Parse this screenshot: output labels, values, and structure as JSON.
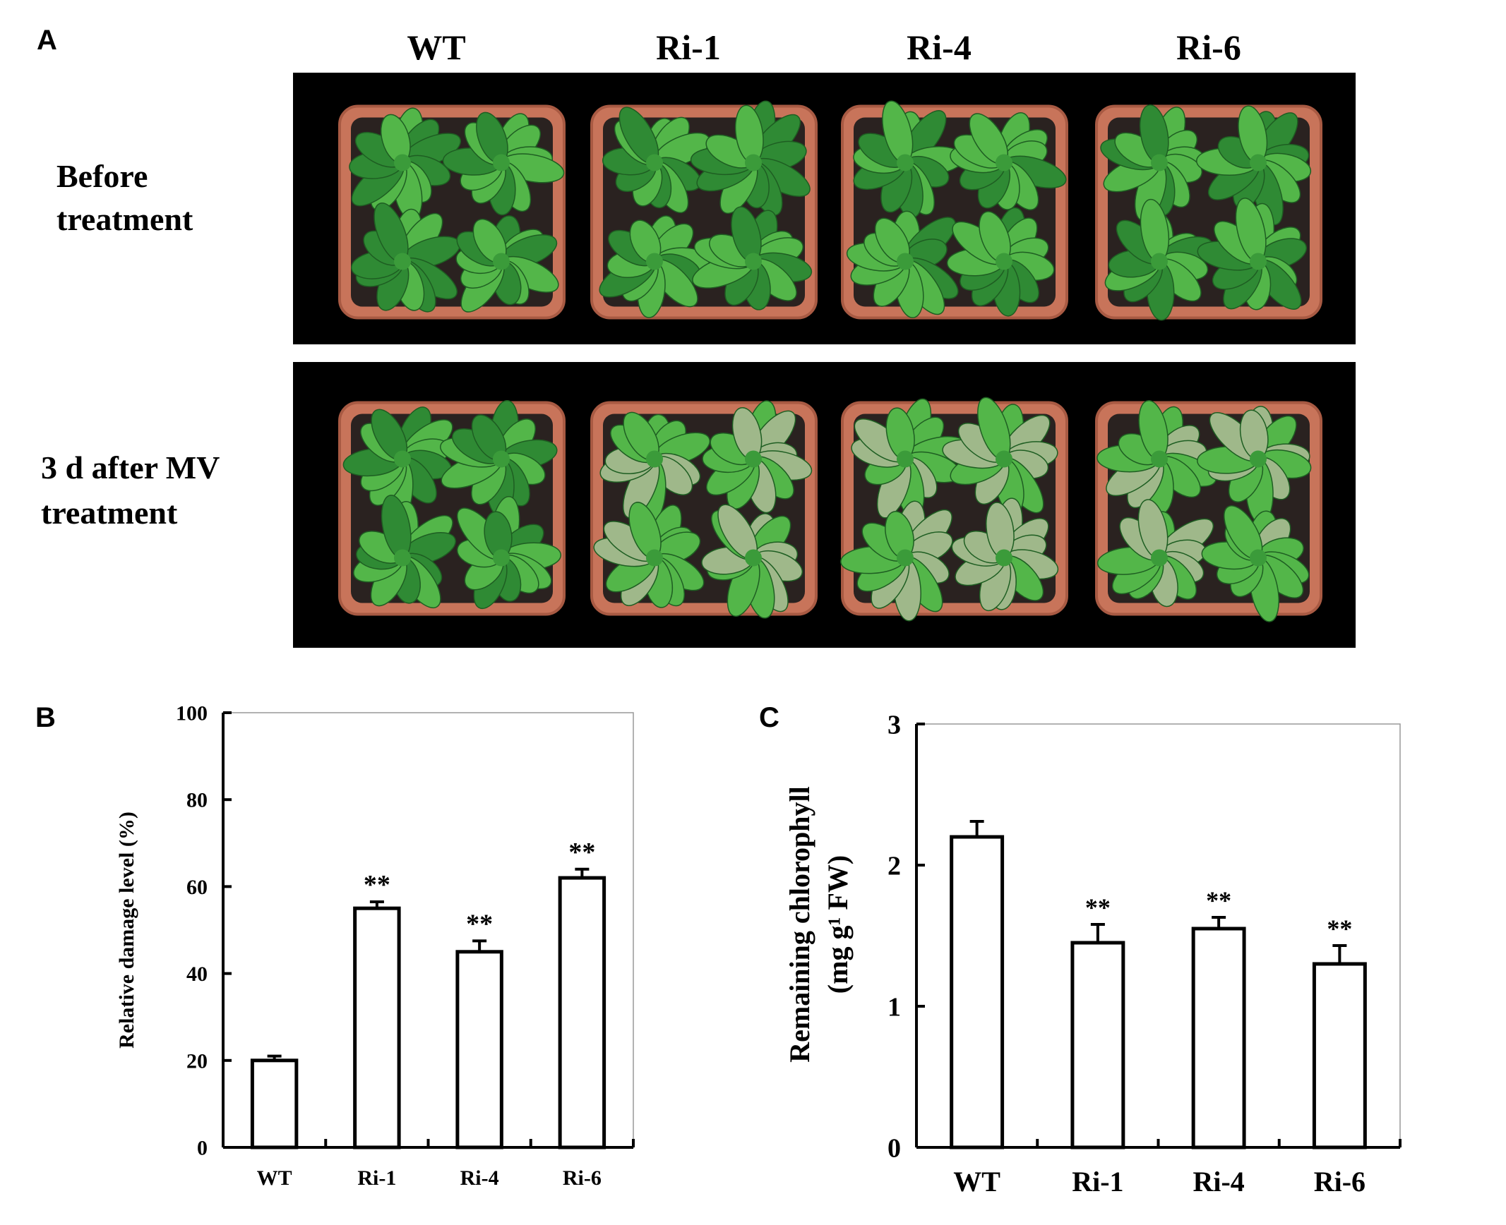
{
  "panel_a": {
    "letter": "A",
    "columns": [
      "WT",
      "Ri-1",
      "Ri-4",
      "Ri-6"
    ],
    "rows": [
      {
        "line1": "Before",
        "line2": "treatment"
      },
      {
        "line1": "3 d after MV",
        "line2": "treatment"
      }
    ],
    "colors": {
      "background": "#000000",
      "pot": "#c8745a",
      "soil": "#2a2220",
      "leaf": "#2f8a34",
      "leaf_light": "#53b649"
    }
  },
  "chart_data": [
    {
      "panel": "B",
      "type": "bar",
      "categories": [
        "WT",
        "Ri-1",
        "Ri-4",
        "Ri-6"
      ],
      "values": [
        20,
        55,
        45,
        62
      ],
      "errors": [
        1,
        1.5,
        2.5,
        2
      ],
      "significance": [
        "",
        "**",
        "**",
        "**"
      ],
      "title": "",
      "xlabel": "",
      "ylabel": "Relative damage level (%)",
      "ylim": [
        0,
        100
      ],
      "yticks": [
        "0",
        "20",
        "40",
        "60",
        "80",
        "100"
      ],
      "grid": false,
      "bar_fill": "#ffffff",
      "bar_stroke": "#000000"
    },
    {
      "panel": "C",
      "type": "bar",
      "categories": [
        "WT",
        "Ri-1",
        "Ri-4",
        "Ri-6"
      ],
      "values": [
        2.2,
        1.45,
        1.55,
        1.3
      ],
      "errors": [
        0.11,
        0.13,
        0.08,
        0.13
      ],
      "significance": [
        "",
        "**",
        "**",
        "**"
      ],
      "title": "",
      "xlabel": "",
      "ylabel_line1": "Remaining chlorophyll",
      "ylabel_line2": "(mg g¹ FW)",
      "ylim": [
        0,
        3
      ],
      "yticks": [
        "0",
        "1",
        "2",
        "3"
      ],
      "grid": false,
      "bar_fill": "#ffffff",
      "bar_stroke": "#000000"
    }
  ]
}
